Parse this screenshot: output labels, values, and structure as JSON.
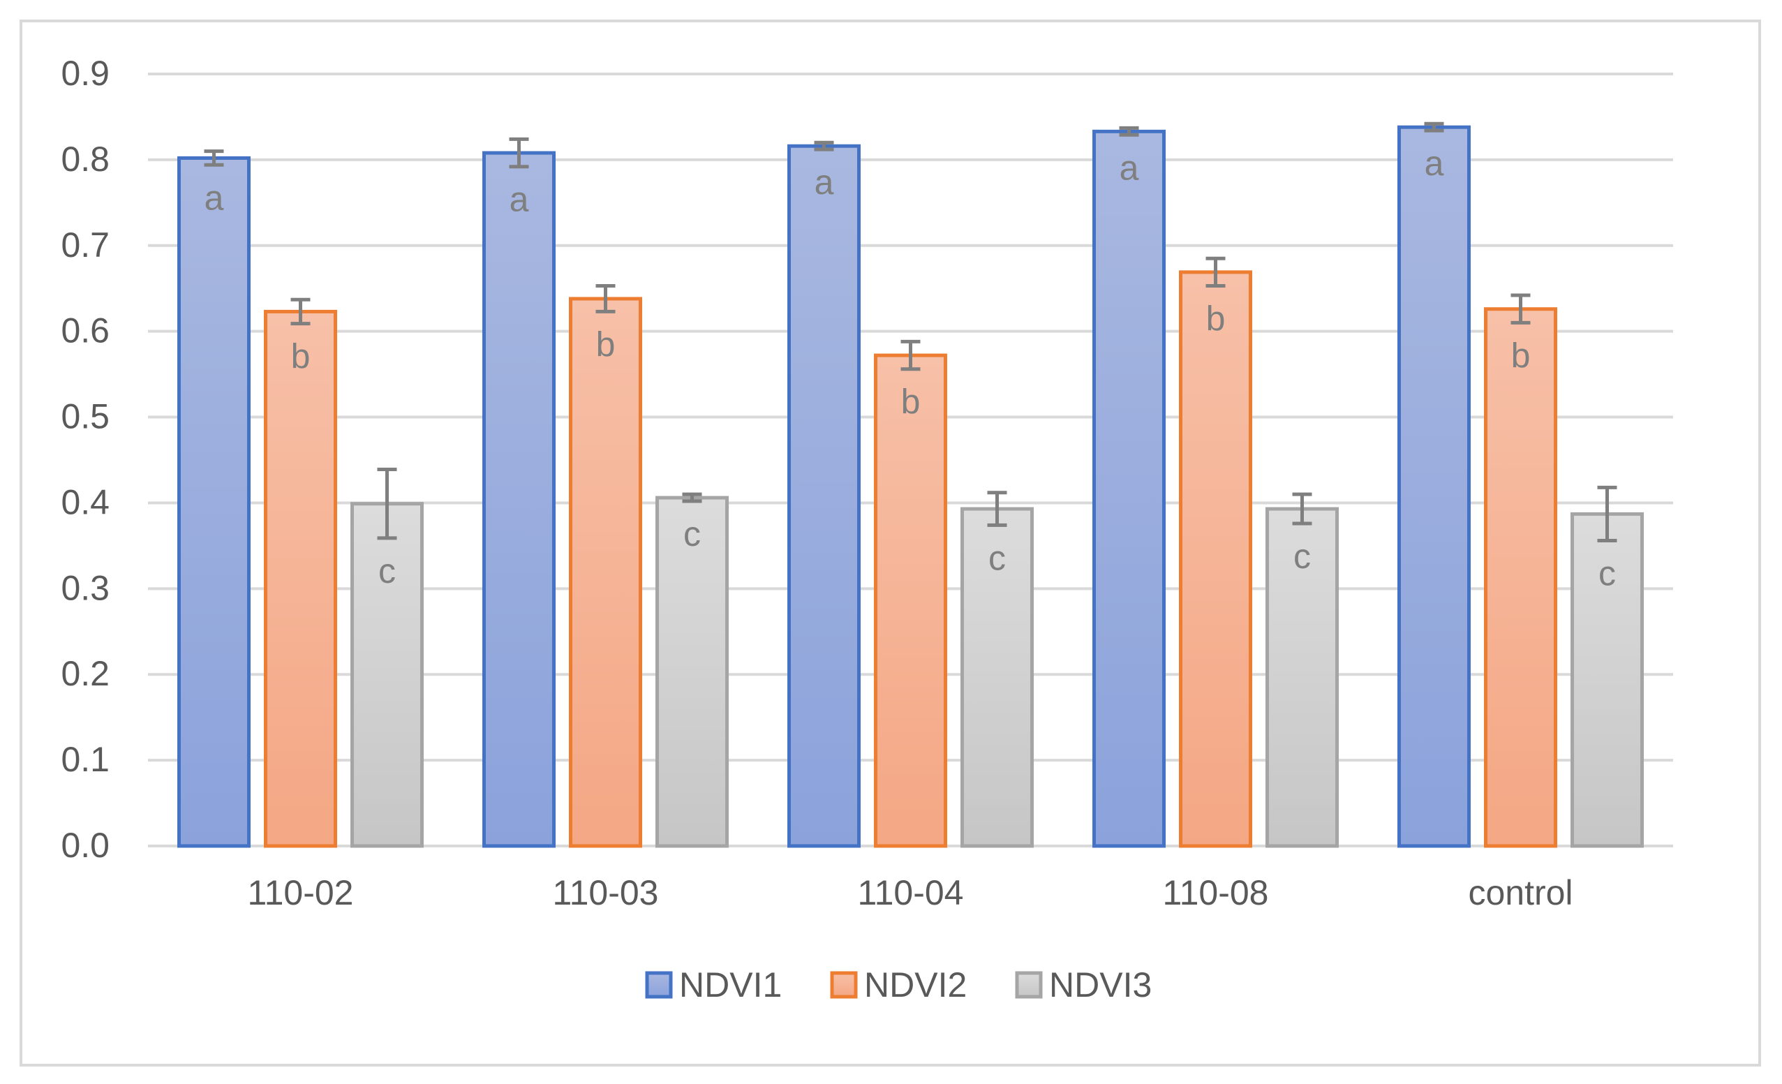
{
  "chart_data": {
    "type": "bar",
    "title": "",
    "xlabel": "",
    "ylabel": "",
    "ylim": [
      0,
      0.9
    ],
    "yticks": [
      "0.0",
      "0.1",
      "0.2",
      "0.3",
      "0.4",
      "0.5",
      "0.6",
      "0.7",
      "0.8",
      "0.9"
    ],
    "grid": true,
    "legend_position": "bottom",
    "categories": [
      "110-02",
      "110-03",
      "110-04",
      "110-08",
      "control"
    ],
    "series": [
      {
        "name": "NDVI1",
        "color": "#4472c4",
        "fill_top": "#a9b8e0",
        "fill_bottom": "#8ba2db",
        "values": [
          0.802,
          0.808,
          0.816,
          0.833,
          0.838
        ],
        "errors": [
          0.008,
          0.016,
          0.004,
          0.004,
          0.004
        ],
        "letters": [
          "a",
          "a",
          "a",
          "a",
          "a"
        ]
      },
      {
        "name": "NDVI2",
        "color": "#ed7d31",
        "fill_top": "#f7c0a8",
        "fill_bottom": "#f4a784",
        "values": [
          0.623,
          0.638,
          0.572,
          0.669,
          0.626
        ],
        "errors": [
          0.014,
          0.015,
          0.016,
          0.016,
          0.016
        ],
        "letters": [
          "b",
          "b",
          "b",
          "b",
          "b"
        ]
      },
      {
        "name": "NDVI3",
        "color": "#a5a5a5",
        "fill_top": "#dcdcdc",
        "fill_bottom": "#c6c6c6",
        "values": [
          0.399,
          0.406,
          0.393,
          0.393,
          0.387
        ],
        "errors": [
          0.04,
          0.004,
          0.019,
          0.017,
          0.031
        ],
        "letters": [
          "c",
          "c",
          "c",
          "c",
          "c"
        ]
      }
    ]
  }
}
